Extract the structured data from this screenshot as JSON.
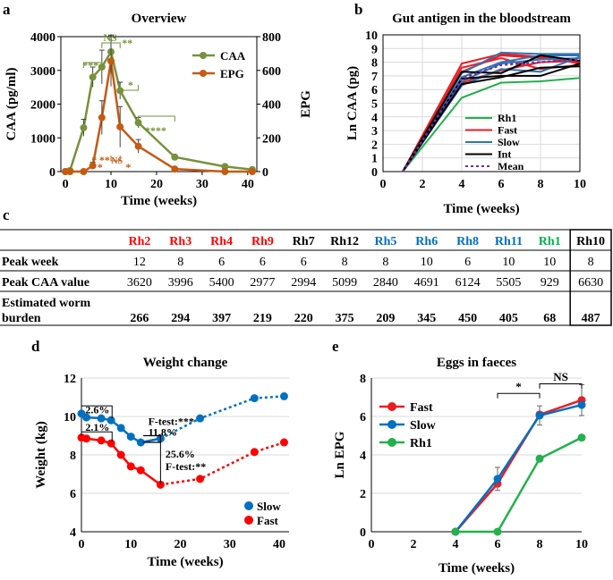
{
  "chart_data": [
    {
      "panel": "a",
      "type": "line",
      "title": "Overview",
      "xlabel": "Time (weeks)",
      "ylabel": "CAA (pg/ml)",
      "y2label": "EPG",
      "xlim": [
        -1,
        42
      ],
      "ylim": [
        0,
        4000
      ],
      "y2lim": [
        0,
        800
      ],
      "xticks": [
        "0",
        "10",
        "20",
        "30",
        "40"
      ],
      "yticks": [
        "0",
        "1000",
        "2000",
        "3000",
        "4000"
      ],
      "y2ticks": [
        "0",
        "200",
        "400",
        "600",
        "800"
      ],
      "series": [
        {
          "name": "CAA",
          "color": "#76923c",
          "axis": "left",
          "x": [
            0,
            1,
            4,
            6,
            8,
            10,
            12,
            16,
            24,
            35,
            41
          ],
          "y": [
            0,
            30,
            1300,
            2800,
            3100,
            3550,
            2400,
            1450,
            430,
            150,
            60
          ],
          "err": [
            0,
            0,
            250,
            300,
            500,
            500,
            250,
            150,
            0,
            0,
            0
          ]
        },
        {
          "name": "EPG",
          "color": "#c55a11",
          "axis": "right",
          "x": [
            0,
            1,
            4,
            6,
            8,
            10,
            12,
            16,
            24,
            35,
            41
          ],
          "y": [
            0,
            0,
            0,
            35,
            320,
            655,
            265,
            150,
            15,
            0,
            0
          ],
          "err": [
            0,
            0,
            0,
            20,
            100,
            150,
            120,
            40,
            0,
            0,
            0
          ]
        }
      ],
      "annotations": [
        {
          "text": "NS",
          "color": "#76923c"
        },
        {
          "text": "**",
          "color": "#76923c"
        },
        {
          "text": "***",
          "color": "#76923c"
        },
        {
          "text": "*",
          "color": "#76923c"
        },
        {
          "text": "****",
          "color": "#76923c"
        },
        {
          "text": "NS",
          "color": "#c55a11"
        },
        {
          "text": "*",
          "color": "#c55a11"
        },
        {
          "text": "**",
          "color": "#c55a11"
        },
        {
          "text": "*",
          "color": "#c55a11"
        },
        {
          "text": "*",
          "color": "#c55a11"
        }
      ]
    },
    {
      "panel": "b",
      "type": "line",
      "title": "Gut antigen in the bloodstream",
      "xlabel": "Time (weeks)",
      "ylabel": "Ln CAA (pg)",
      "xlim": [
        0,
        10
      ],
      "ylim": [
        0,
        10
      ],
      "xticks": [
        "0",
        "2",
        "4",
        "6",
        "8",
        "10"
      ],
      "yticks": [
        "0",
        "1",
        "2",
        "3",
        "4",
        "5",
        "6",
        "7",
        "8",
        "9",
        "10"
      ],
      "legend": [
        "Rh1",
        "Fast",
        "Slow",
        "Int",
        "Mean"
      ],
      "series": [
        {
          "name": "Rh1",
          "color": "#22b14c",
          "x": [
            1,
            4,
            6,
            8,
            10
          ],
          "y": [
            0,
            5.4,
            6.5,
            6.6,
            6.85
          ]
        },
        {
          "name": "Fast",
          "color": "#ed1c24",
          "x": [
            1,
            4,
            6,
            8,
            10
          ],
          "y": [
            0,
            7.9,
            8.6,
            8.4,
            7.9
          ]
        },
        {
          "name": "Fast",
          "color": "#ed1c24",
          "x": [
            1,
            4,
            6,
            8,
            10
          ],
          "y": [
            0,
            7.6,
            8.3,
            7.5,
            7.8
          ]
        },
        {
          "name": "Fast",
          "color": "#ed1c24",
          "x": [
            1,
            4,
            6,
            8,
            10
          ],
          "y": [
            0,
            7.3,
            8.5,
            8.3,
            8.0
          ]
        },
        {
          "name": "Fast",
          "color": "#ed1c24",
          "x": [
            1,
            4,
            6,
            8,
            10
          ],
          "y": [
            0,
            6.5,
            7.4,
            8.0,
            8.1
          ]
        },
        {
          "name": "Slow",
          "color": "#2e75b6",
          "x": [
            1,
            4,
            6,
            8,
            10
          ],
          "y": [
            0,
            7.2,
            8.7,
            8.6,
            8.6
          ]
        },
        {
          "name": "Slow",
          "color": "#2e75b6",
          "x": [
            1,
            4,
            6,
            8,
            10
          ],
          "y": [
            0,
            6.9,
            8.0,
            8.5,
            8.5
          ]
        },
        {
          "name": "Slow",
          "color": "#2e75b6",
          "x": [
            1,
            4,
            6,
            8,
            10
          ],
          "y": [
            0,
            6.6,
            7.9,
            8.2,
            8.3
          ]
        },
        {
          "name": "Slow",
          "color": "#2e75b6",
          "x": [
            1,
            4,
            6,
            8,
            10
          ],
          "y": [
            0,
            6.3,
            7.5,
            7.3,
            8.4
          ]
        },
        {
          "name": "Int",
          "color": "#000000",
          "x": [
            1,
            4,
            6,
            8,
            10
          ],
          "y": [
            0,
            7.3,
            7.2,
            8.5,
            8.1
          ]
        },
        {
          "name": "Int",
          "color": "#000000",
          "x": [
            1,
            4,
            6,
            8,
            10
          ],
          "y": [
            0,
            6.8,
            7.0,
            7.0,
            7.9
          ]
        },
        {
          "name": "Int",
          "color": "#000000",
          "x": [
            1,
            4,
            6,
            8,
            10
          ],
          "y": [
            0,
            6.4,
            6.9,
            7.6,
            7.7
          ]
        },
        {
          "name": "Mean",
          "color": "#7030a0",
          "dashed": true,
          "x": [
            1,
            4,
            6,
            8,
            10
          ],
          "y": [
            0,
            6.8,
            7.8,
            8.0,
            8.2
          ]
        }
      ]
    },
    {
      "panel": "d",
      "type": "line",
      "title": "Weight change",
      "xlabel": "Time (weeks)",
      "ylabel": "Weight (kg)",
      "xlim": [
        0,
        42
      ],
      "ylim": [
        4,
        12
      ],
      "xticks": [
        "0",
        "10",
        "20",
        "30",
        "40"
      ],
      "yticks": [
        "4",
        "6",
        "8",
        "10",
        "12"
      ],
      "legend": [
        "Slow",
        "Fast"
      ],
      "series": [
        {
          "name": "Slow",
          "color": "#0070c0",
          "x": [
            0,
            1,
            4,
            6,
            8,
            10,
            12,
            16,
            24,
            35,
            41
          ],
          "y": [
            10.15,
            9.95,
            9.9,
            9.8,
            9.4,
            8.95,
            8.65,
            8.85,
            9.9,
            10.95,
            11.05
          ],
          "dashed_from_x": 16
        },
        {
          "name": "Fast",
          "color": "#ff0000",
          "x": [
            0,
            1,
            4,
            6,
            8,
            10,
            12,
            16,
            24,
            35,
            41
          ],
          "y": [
            8.9,
            8.85,
            8.75,
            8.6,
            8.0,
            7.4,
            7.2,
            6.45,
            6.75,
            8.15,
            8.65
          ],
          "dashed_from_x": 16
        }
      ],
      "annotations": [
        "2.6%",
        "2.1%",
        "F-test:***",
        "11.8%",
        "25.6%",
        "F-test:**"
      ]
    },
    {
      "panel": "e",
      "type": "line",
      "title": "Eggs in faeces",
      "xlabel": "Time (weeks)",
      "ylabel": "Ln EPG",
      "xlim": [
        0,
        10
      ],
      "ylim": [
        0,
        8
      ],
      "xticks": [
        "0",
        "2",
        "4",
        "6",
        "8",
        "10"
      ],
      "yticks": [
        "0",
        "2",
        "4",
        "6",
        "8"
      ],
      "legend": [
        "Fast",
        "Slow",
        "Rh1"
      ],
      "series": [
        {
          "name": "Fast",
          "color": "#ed1c24",
          "x": [
            4,
            6,
            8,
            10
          ],
          "y": [
            0,
            2.5,
            6.1,
            6.85
          ],
          "err": [
            0,
            0,
            0,
            0.8
          ]
        },
        {
          "name": "Slow",
          "color": "#0070c0",
          "x": [
            4,
            6,
            8,
            10
          ],
          "y": [
            0,
            2.75,
            6.05,
            6.6
          ],
          "err": [
            0,
            0.6,
            0.5,
            0
          ]
        },
        {
          "name": "Rh1",
          "color": "#22b14c",
          "x": [
            4,
            6,
            8,
            10
          ],
          "y": [
            0,
            0,
            3.8,
            4.9
          ]
        }
      ],
      "annotations": [
        "*",
        "NS"
      ]
    }
  ],
  "panel_labels": {
    "a": "a",
    "b": "b",
    "c": "c",
    "d": "d",
    "e": "e"
  },
  "table_c": {
    "header": [
      {
        "name": "Rh2",
        "color": "#ff0000"
      },
      {
        "name": "Rh3",
        "color": "#ff0000"
      },
      {
        "name": "Rh4",
        "color": "#ff0000"
      },
      {
        "name": "Rh9",
        "color": "#ff0000"
      },
      {
        "name": "Rh7",
        "color": "#000000"
      },
      {
        "name": "Rh12",
        "color": "#000000"
      },
      {
        "name": "Rh5",
        "color": "#0070c0"
      },
      {
        "name": "Rh6",
        "color": "#0070c0"
      },
      {
        "name": "Rh8",
        "color": "#0070c0"
      },
      {
        "name": "Rh11",
        "color": "#0070c0"
      },
      {
        "name": "Rh1",
        "color": "#00b050"
      },
      {
        "name": "Rh10",
        "color": "#000000"
      }
    ],
    "rows": [
      {
        "label": "Peak week",
        "values": [
          "12",
          "8",
          "6",
          "6",
          "6",
          "8",
          "8",
          "10",
          "6",
          "10",
          "10",
          "8"
        ]
      },
      {
        "label": "Peak CAA value",
        "values": [
          "3620",
          "3996",
          "5400",
          "2977",
          "2994",
          "5099",
          "2840",
          "4691",
          "6124",
          "5505",
          "929",
          "6630"
        ]
      },
      {
        "label_line1": "Estimated worm",
        "label_line2": "burden",
        "values": [
          "266",
          "294",
          "397",
          "219",
          "220",
          "375",
          "209",
          "345",
          "450",
          "405",
          "68",
          "487"
        ]
      }
    ]
  }
}
